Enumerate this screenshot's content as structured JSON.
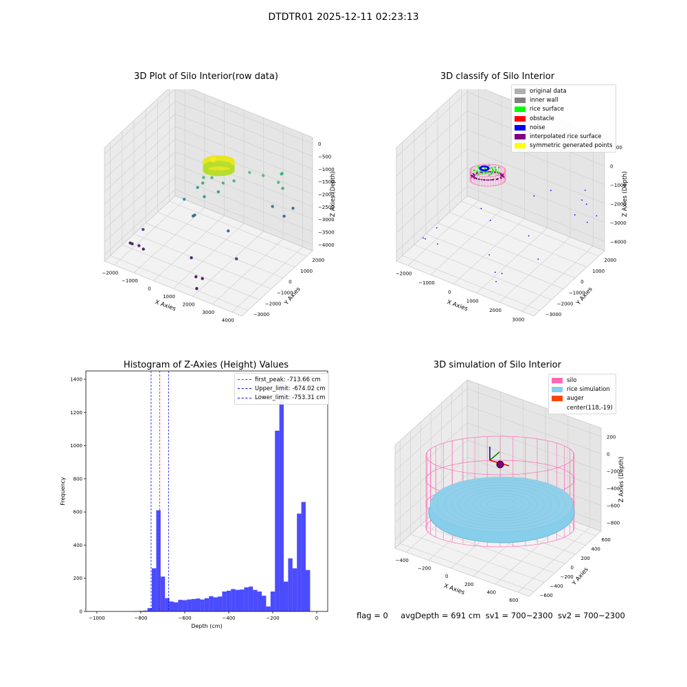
{
  "suptitle": "DTDTR01 2025-12-11 02:23:13",
  "chart_data": [
    {
      "type": "scatter3d",
      "title": "3D Plot of Silo Interior(row data)",
      "xlabel": "X Axies",
      "ylabel": "Y Axies",
      "zlabel": "Z Axies (Depth)",
      "xticks": [
        "−2000",
        "−1000",
        "0",
        "1000",
        "2000",
        "3000",
        "4000"
      ],
      "yticks": [
        "−3000",
        "−2000",
        "−1000",
        "0",
        "1000",
        "2000"
      ],
      "zticks": [
        "−4000",
        "−3500",
        "−3000",
        "−2500",
        "−2000",
        "−1500",
        "−1000",
        "−500",
        "0"
      ],
      "colormap": "viridis",
      "points": [
        [
          -2100,
          -2000,
          -4000
        ],
        [
          -2000,
          -2000,
          -4000
        ],
        [
          -1500,
          -1900,
          -4100
        ],
        [
          -1700,
          -1600,
          -3500
        ],
        [
          -1600,
          -2100,
          -3900
        ],
        [
          0,
          -1000,
          -2000
        ],
        [
          200,
          -600,
          -2800
        ],
        [
          300,
          -400,
          -1700
        ],
        [
          500,
          -300,
          -1500
        ],
        [
          700,
          -500,
          -1900
        ],
        [
          400,
          -800,
          -2600
        ],
        [
          600,
          -400,
          -1200
        ],
        [
          900,
          -200,
          -1200
        ],
        [
          1100,
          0,
          -1800
        ],
        [
          1400,
          -100,
          -1300
        ],
        [
          1700,
          300,
          -1300
        ],
        [
          600,
          -1400,
          -4000
        ],
        [
          1200,
          -2000,
          -4300
        ],
        [
          1300,
          -2100,
          -4700
        ],
        [
          1400,
          -1800,
          -4400
        ],
        [
          2500,
          -800,
          -3700
        ],
        [
          1900,
          -500,
          -2900
        ],
        [
          2300,
          600,
          -900
        ],
        [
          2800,
          900,
          -1000
        ],
        [
          3500,
          1000,
          -1100
        ],
        [
          3600,
          1200,
          -1400
        ],
        [
          3200,
          1800,
          -1200
        ],
        [
          3100,
          1900,
          -1300
        ],
        [
          2900,
          1500,
          -2500
        ],
        [
          3300,
          1800,
          -2900
        ],
        [
          3500,
          2200,
          -2700
        ],
        [
          800,
          100,
          -1000
        ],
        [
          900,
          300,
          -1100
        ],
        [
          700,
          200,
          -900
        ],
        [
          1000,
          0,
          -1000
        ],
        [
          1100,
          200,
          -800
        ],
        [
          600,
          300,
          -950
        ],
        [
          1200,
          400,
          -1050
        ]
      ],
      "cluster_center": [
        1000,
        200,
        -700
      ]
    },
    {
      "type": "scatter3d",
      "title": "3D classify of Silo Interior",
      "xlabel": "X Axies",
      "ylabel": "Y Axies",
      "zlabel": "Z Axies (Depth)",
      "xticks": [
        "−2000",
        "−1000",
        "0",
        "1000",
        "2000",
        "3000"
      ],
      "yticks": [
        "−3000",
        "−2000",
        "−1000",
        "0",
        "1000",
        "2000"
      ],
      "zticks": [
        "−4000",
        "−3000",
        "−2000",
        "−1000",
        "0",
        "1000"
      ],
      "legend": [
        {
          "label": "original data",
          "color": "#b0b0b0"
        },
        {
          "label": "inner wall",
          "color": "#808080"
        },
        {
          "label": "rice surface",
          "color": "#00ff00"
        },
        {
          "label": "obstacle",
          "color": "#ff0000"
        },
        {
          "label": "noise",
          "color": "#0000ff"
        },
        {
          "label": "interpolated rice surface",
          "color": "#800080"
        },
        {
          "label": "symmetric generated points",
          "color": "#ffff00"
        }
      ],
      "noise_points": [
        [
          -2100,
          -2000,
          -4000
        ],
        [
          -2000,
          -2000,
          -4000
        ],
        [
          -1500,
          -1900,
          -4100
        ],
        [
          -1700,
          -1600,
          -3500
        ],
        [
          0,
          -1000,
          -2000
        ],
        [
          200,
          -600,
          -2800
        ],
        [
          600,
          -1400,
          -4000
        ],
        [
          1200,
          -2000,
          -4300
        ],
        [
          1300,
          -2100,
          -4700
        ],
        [
          1400,
          -1800,
          -4400
        ],
        [
          2500,
          -800,
          -3700
        ],
        [
          1900,
          -500,
          -2900
        ],
        [
          3500,
          1000,
          -1100
        ],
        [
          3600,
          1200,
          -1400
        ],
        [
          3200,
          1800,
          -1200
        ],
        [
          2900,
          1500,
          -2500
        ],
        [
          3300,
          1800,
          -2900
        ],
        [
          3500,
          2200,
          -2700
        ],
        [
          2300,
          600,
          -900
        ],
        [
          1700,
          300,
          -1300
        ]
      ]
    },
    {
      "type": "bar",
      "title": "Histogram of Z-Axies (Height) Values",
      "xlabel": "Depth (cm)",
      "ylabel": "Frequency",
      "xlim": [
        -1050,
        50
      ],
      "ylim": [
        0,
        1450
      ],
      "xticks": [
        -1000,
        -800,
        -600,
        -400,
        -200,
        0
      ],
      "xtick_labels": [
        "−1000",
        "−800",
        "−600",
        "−400",
        "−200",
        "0"
      ],
      "yticks": [
        0,
        200,
        400,
        600,
        800,
        1000,
        1200,
        1400
      ],
      "bar_color": "#0000ff",
      "bin_start": -830,
      "bin_width": 20,
      "values": [
        2,
        3,
        5,
        20,
        260,
        610,
        210,
        80,
        60,
        55,
        70,
        68,
        72,
        75,
        78,
        72,
        80,
        92,
        85,
        90,
        120,
        125,
        135,
        130,
        132,
        145,
        150,
        130,
        120,
        95,
        30,
        120,
        1090,
        1390,
        180,
        320,
        260,
        590,
        660,
        250
      ],
      "lines": [
        {
          "label": "first_peak: -713.66 cm",
          "value": -713.66,
          "color": "#ff0000"
        },
        {
          "label": "Upper_limit: -674.02 cm",
          "value": -674.02,
          "color": "#0000ff"
        },
        {
          "label": "Lower_limit: -753.31 cm",
          "value": -753.31,
          "color": "#0000ff"
        }
      ]
    },
    {
      "type": "surface3d",
      "title": "3D simulation of Silo Interior",
      "xlabel": "X Axies",
      "ylabel": "Y Axies",
      "zlabel": "Z Axies (Depth)",
      "xticks": [
        "−400",
        "−200",
        "0",
        "200",
        "400",
        "600"
      ],
      "yticks": [
        "−600",
        "−400",
        "−200",
        "0",
        "200",
        "400",
        "600"
      ],
      "zticks": [
        "−800",
        "−600",
        "−400",
        "−200",
        "0",
        "200"
      ],
      "legend": [
        {
          "label": "silo",
          "color": "#ff69b4"
        },
        {
          "label": "rice simulation",
          "color": "#87ceeb"
        },
        {
          "label": "auger",
          "color": "#ff4500"
        },
        {
          "label": "center(118,-19)",
          "color": ""
        }
      ]
    }
  ],
  "status": {
    "flag": "flag = 0",
    "avg_depth": "avgDepth = 691 cm",
    "sv1": "sv1 = 700~2300",
    "sv2": "sv2 = 700~2300"
  }
}
